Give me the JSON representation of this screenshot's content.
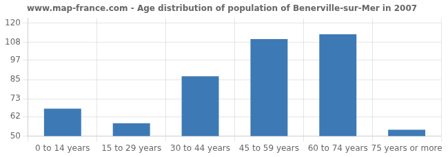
{
  "chart_data": {
    "type": "bar",
    "title": "www.map-france.com - Age distribution of population of Benerville-sur-Mer in 2007",
    "categories": [
      "0 to 14 years",
      "15 to 29 years",
      "30 to 44 years",
      "45 to 59 years",
      "60 to 74 years",
      "75 years or more"
    ],
    "values": [
      67,
      58,
      87,
      110,
      113,
      54
    ],
    "color": "#3d7ab5",
    "ylim": [
      50,
      123
    ],
    "yticks": [
      50,
      62,
      73,
      85,
      97,
      108,
      120
    ],
    "grid": true
  }
}
